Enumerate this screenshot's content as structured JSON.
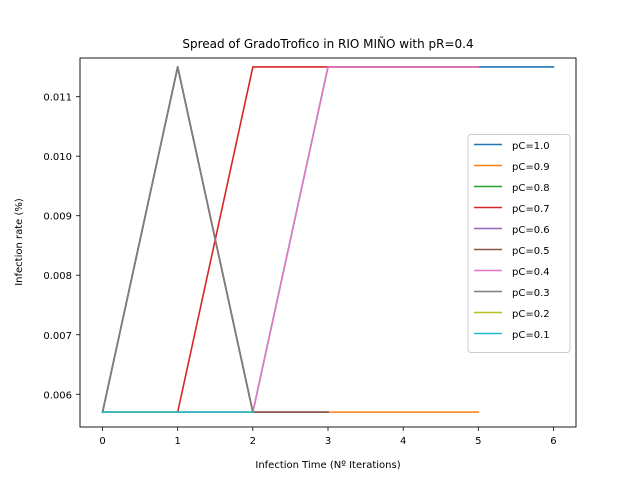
{
  "chart_data": {
    "type": "line",
    "title": "Spread of GradoTrofico in RIO MIÑO with pR=0.4",
    "xlabel": "Infection Time (Nº Iterations)",
    "ylabel": "Infection rate (%)",
    "xlim": [
      -0.3,
      6.3
    ],
    "ylim": [
      0.00545,
      0.01165
    ],
    "xticks": [
      0,
      1,
      2,
      3,
      4,
      5,
      6
    ],
    "yticks": [
      0.006,
      0.007,
      0.008,
      0.009,
      0.01,
      0.011
    ],
    "ytick_labels": [
      "0.006",
      "0.007",
      "0.008",
      "0.009",
      "0.010",
      "0.011"
    ],
    "legend_position": "center-right",
    "grid": false,
    "series": [
      {
        "name": "pC=1.0",
        "color": "#1f77b4",
        "x": [
          0,
          1,
          2,
          3,
          4,
          5,
          6
        ],
        "y": [
          0.0057,
          0.0057,
          0.0057,
          0.0115,
          0.0115,
          0.0115,
          0.0115
        ]
      },
      {
        "name": "pC=0.9",
        "color": "#ff7f0e",
        "x": [
          0,
          1,
          2,
          3,
          4,
          5
        ],
        "y": [
          0.0057,
          0.0115,
          0.0057,
          0.0057,
          0.0057,
          0.0057
        ]
      },
      {
        "name": "pC=0.8",
        "color": "#2ca02c",
        "x": [
          0,
          1,
          2,
          3
        ],
        "y": [
          0.0057,
          0.0115,
          0.0057,
          0.0057
        ]
      },
      {
        "name": "pC=0.7",
        "color": "#d62728",
        "x": [
          0,
          1,
          2,
          3,
          4,
          5
        ],
        "y": [
          0.0057,
          0.0057,
          0.0115,
          0.0115,
          0.0115,
          0.0115
        ]
      },
      {
        "name": "pC=0.6",
        "color": "#9467bd",
        "x": [
          0,
          1,
          2,
          3
        ],
        "y": [
          0.0057,
          0.0115,
          0.0057,
          0.0057
        ]
      },
      {
        "name": "pC=0.5",
        "color": "#8c564b",
        "x": [
          0,
          1,
          2,
          3
        ],
        "y": [
          0.0057,
          0.0115,
          0.0057,
          0.0057
        ]
      },
      {
        "name": "pC=0.4",
        "color": "#e377c2",
        "x": [
          0,
          1,
          2,
          3,
          4,
          5
        ],
        "y": [
          0.0057,
          0.0057,
          0.0057,
          0.0115,
          0.0115,
          0.0115
        ]
      },
      {
        "name": "pC=0.3",
        "color": "#7f7f7f",
        "x": [
          0,
          1,
          2
        ],
        "y": [
          0.0057,
          0.0115,
          0.0057
        ]
      },
      {
        "name": "pC=0.2",
        "color": "#bcbd22",
        "x": [
          0,
          1,
          2
        ],
        "y": [
          0.0057,
          0.0057,
          0.0057
        ]
      },
      {
        "name": "pC=0.1",
        "color": "#17becf",
        "x": [
          0,
          1,
          2
        ],
        "y": [
          0.0057,
          0.0057,
          0.0057
        ]
      }
    ]
  }
}
